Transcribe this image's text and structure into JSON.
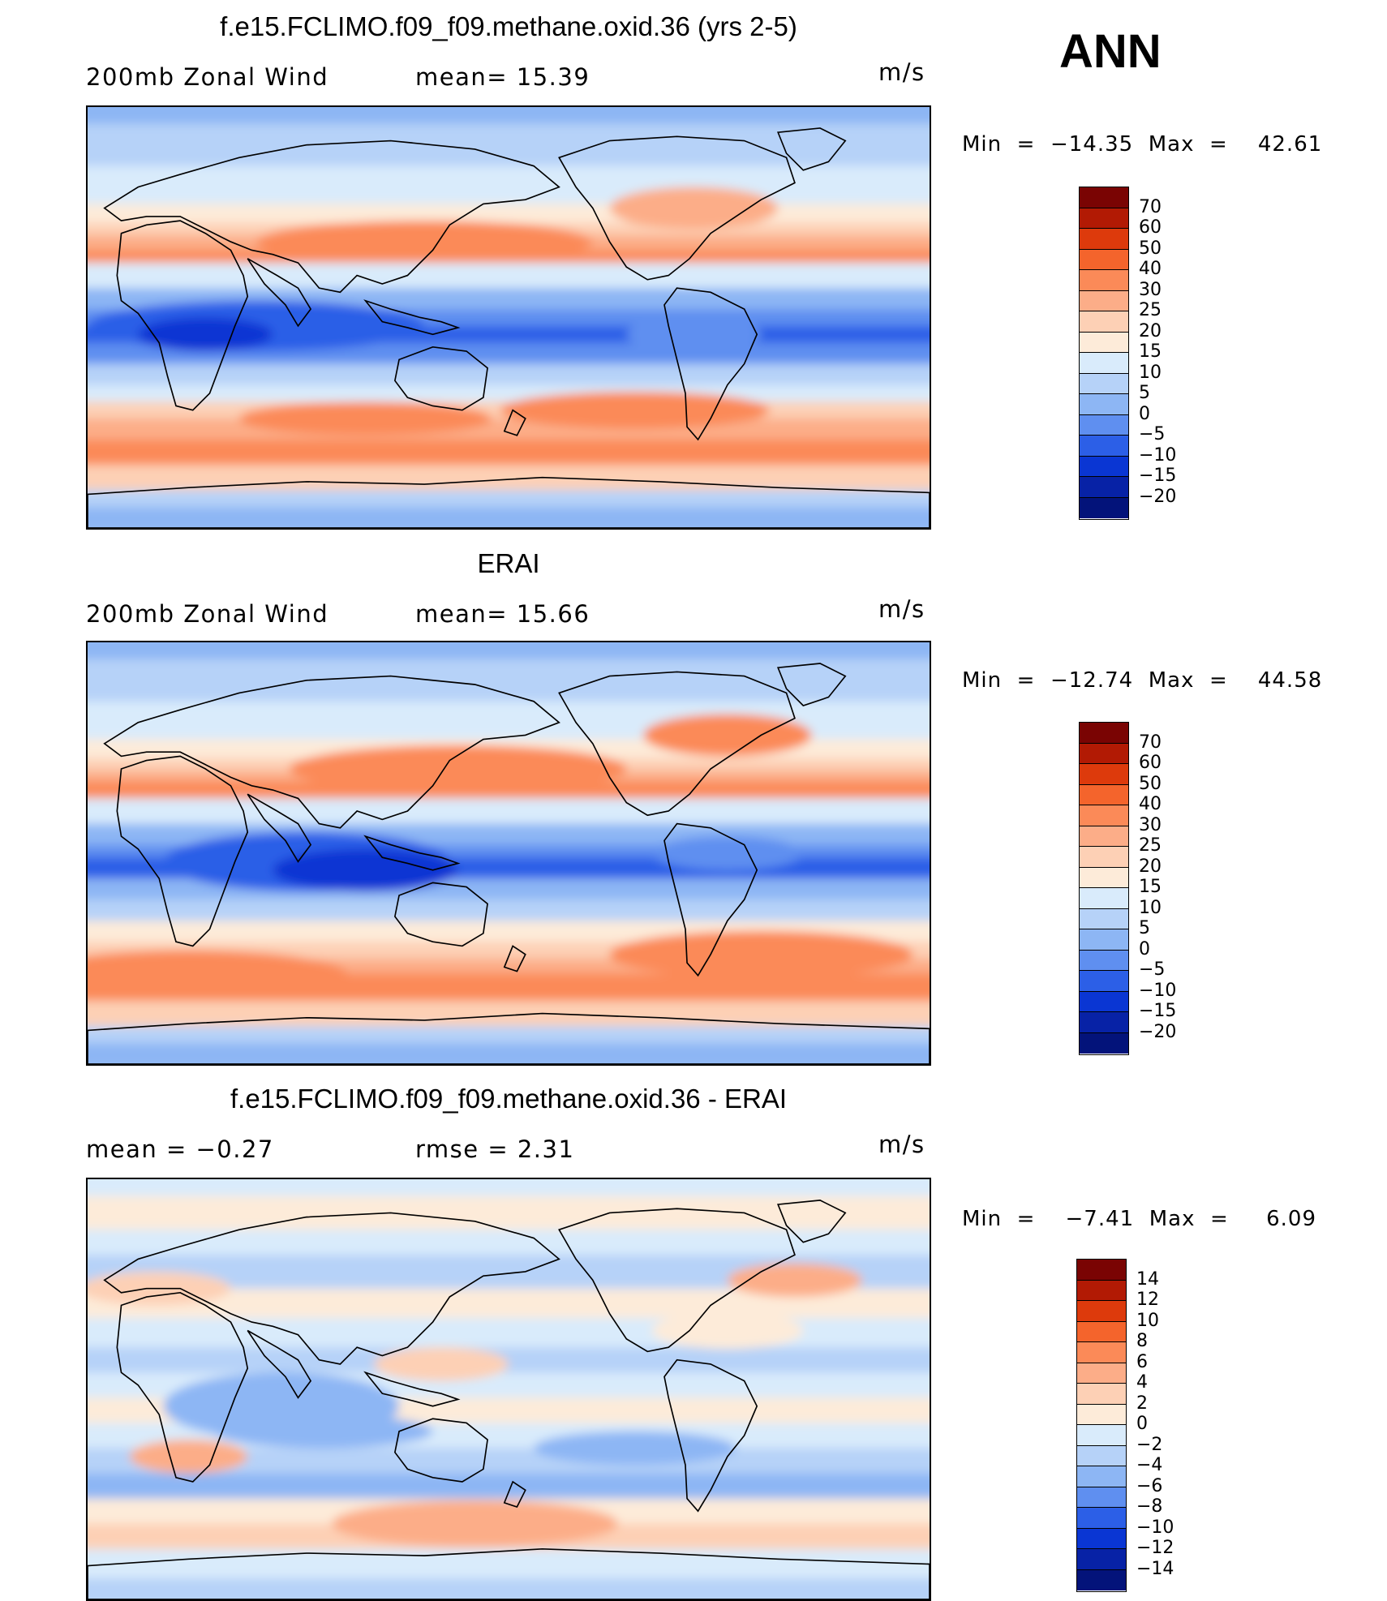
{
  "season": "ANN",
  "units": "m/s",
  "panels": [
    {
      "title": "f.e15.FCLIMO.f09_f09.methane.oxid.36 (yrs 2-5)",
      "left": "200mb Zonal Wind",
      "stat_label": "mean=",
      "stat_value": "15.39",
      "minmax": "Min  =  −14.35  Max  =    42.61",
      "levels": [
        "70",
        "60",
        "50",
        "40",
        "30",
        "25",
        "20",
        "15",
        "10",
        "5",
        "0",
        "−5",
        "−10",
        "−15",
        "−20"
      ],
      "type": "model"
    },
    {
      "title": "ERAI",
      "left": "200mb Zonal Wind",
      "stat_label": "mean=",
      "stat_value": "15.66",
      "minmax": "Min  =  −12.74  Max  =    44.58",
      "levels": [
        "70",
        "60",
        "50",
        "40",
        "30",
        "25",
        "20",
        "15",
        "10",
        "5",
        "0",
        "−5",
        "−10",
        "−15",
        "−20"
      ],
      "type": "obs"
    },
    {
      "title": "f.e15.FCLIMO.f09_f09.methane.oxid.36 - ERAI",
      "left": "mean  =    −0.27",
      "stat_label": "rmse  =",
      "stat_value": "2.31",
      "minmax": "Min  =    −7.41  Max  =     6.09",
      "levels": [
        "14",
        "12",
        "10",
        "8",
        "6",
        "4",
        "2",
        "0",
        "−2",
        "−4",
        "−6",
        "−8",
        "−10",
        "−12",
        "−14"
      ],
      "type": "diff"
    }
  ],
  "colors": {
    "full": [
      "#7a0403",
      "#b21a04",
      "#dd3a0c",
      "#f4642c",
      "#fb8a58",
      "#fcad88",
      "#fdd0b5",
      "#fdebd9",
      "#d9ebfb",
      "#b6d2f8",
      "#8db6f4",
      "#5f8ff0",
      "#2c5fe7",
      "#0a36d3",
      "#0722a6",
      "#03137a"
    ],
    "diff": [
      "#7a0403",
      "#b21a04",
      "#dd3a0c",
      "#f4642c",
      "#fb8a58",
      "#fcad88",
      "#fdd0b5",
      "#fdebd9",
      "#d9ebfb",
      "#b6d2f8",
      "#8db6f4",
      "#5f8ff0",
      "#2c5fe7",
      "#0a36d3",
      "#0722a6",
      "#03137a"
    ]
  }
}
